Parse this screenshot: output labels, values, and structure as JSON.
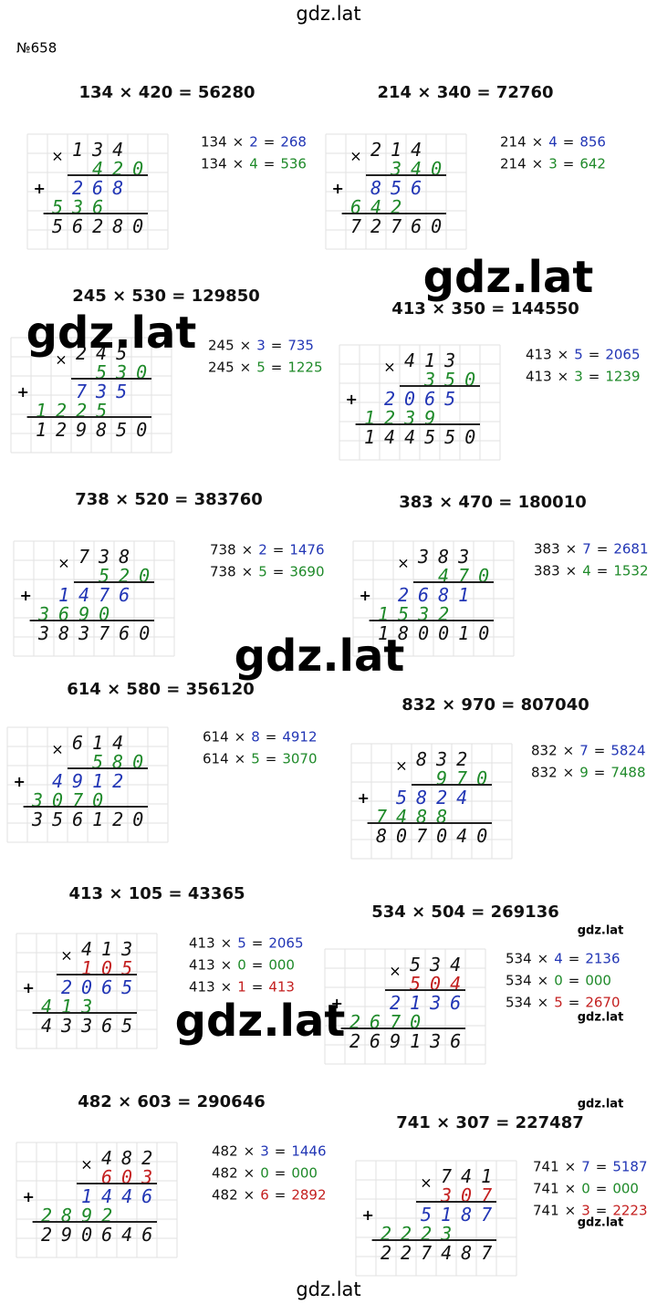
{
  "header": {
    "site": "gdz.lat",
    "number": "№658"
  },
  "footer": "gdz.lat",
  "signs": {
    "times": "×",
    "plus": "+",
    "equals": "="
  },
  "problems": [
    {
      "title": "134 × 420 = 56280",
      "a": "134",
      "b": "420",
      "partials": [
        {
          "digits": "268",
          "color": "#2236b5"
        },
        {
          "digits": "536",
          "color": "#1f8a2a"
        }
      ],
      "result": "56280",
      "notes": [
        {
          "a": "134",
          "b": "2",
          "r": "268",
          "color": "#2236b5"
        },
        {
          "a": "134",
          "b": "4",
          "r": "536",
          "color": "#1f8a2a"
        }
      ]
    },
    {
      "title": "214 × 340 = 72760",
      "a": "214",
      "b": "340",
      "partials": [
        {
          "digits": "856",
          "color": "#2236b5"
        },
        {
          "digits": "642",
          "color": "#1f8a2a"
        }
      ],
      "result": "72760",
      "notes": [
        {
          "a": "214",
          "b": "4",
          "r": "856",
          "color": "#2236b5"
        },
        {
          "a": "214",
          "b": "3",
          "r": "642",
          "color": "#1f8a2a"
        }
      ]
    },
    {
      "title": "245 × 530 = 129850",
      "a": "245",
      "b": "530",
      "partials": [
        {
          "digits": "735",
          "color": "#2236b5"
        },
        {
          "digits": "1225",
          "color": "#1f8a2a"
        }
      ],
      "result": "129850",
      "notes": [
        {
          "a": "245",
          "b": "3",
          "r": "735",
          "color": "#2236b5"
        },
        {
          "a": "245",
          "b": "5",
          "r": "1225",
          "color": "#1f8a2a"
        }
      ]
    },
    {
      "title": "413 × 350 = 144550",
      "a": "413",
      "b": "350",
      "partials": [
        {
          "digits": "2065",
          "color": "#2236b5"
        },
        {
          "digits": "1239",
          "color": "#1f8a2a"
        }
      ],
      "result": "144550",
      "notes": [
        {
          "a": "413",
          "b": "5",
          "r": "2065",
          "color": "#2236b5"
        },
        {
          "a": "413",
          "b": "3",
          "r": "1239",
          "color": "#1f8a2a"
        }
      ]
    },
    {
      "title": "738 × 520 = 383760",
      "a": "738",
      "b": "520",
      "partials": [
        {
          "digits": "1476",
          "color": "#2236b5"
        },
        {
          "digits": "3690",
          "color": "#1f8a2a"
        }
      ],
      "result": "383760",
      "notes": [
        {
          "a": "738",
          "b": "2",
          "r": "1476",
          "color": "#2236b5"
        },
        {
          "a": "738",
          "b": "5",
          "r": "3690",
          "color": "#1f8a2a"
        }
      ]
    },
    {
      "title": "383 × 470 = 180010",
      "a": "383",
      "b": "470",
      "partials": [
        {
          "digits": "2681",
          "color": "#2236b5"
        },
        {
          "digits": "1532",
          "color": "#1f8a2a"
        }
      ],
      "result": "180010",
      "notes": [
        {
          "a": "383",
          "b": "7",
          "r": "2681",
          "color": "#2236b5"
        },
        {
          "a": "383",
          "b": "4",
          "r": "1532",
          "color": "#1f8a2a"
        }
      ]
    },
    {
      "title": "614 × 580 = 356120",
      "a": "614",
      "b": "580",
      "partials": [
        {
          "digits": "4912",
          "color": "#2236b5"
        },
        {
          "digits": "3070",
          "color": "#1f8a2a"
        }
      ],
      "result": "356120",
      "notes": [
        {
          "a": "614",
          "b": "8",
          "r": "4912",
          "color": "#2236b5"
        },
        {
          "a": "614",
          "b": "5",
          "r": "3070",
          "color": "#1f8a2a"
        }
      ]
    },
    {
      "title": "832 × 970 = 807040",
      "a": "832",
      "b": "970",
      "partials": [
        {
          "digits": "5824",
          "color": "#2236b5"
        },
        {
          "digits": "7488",
          "color": "#1f8a2a"
        }
      ],
      "result": "807040",
      "notes": [
        {
          "a": "832",
          "b": "7",
          "r": "5824",
          "color": "#2236b5"
        },
        {
          "a": "832",
          "b": "9",
          "r": "7488",
          "color": "#1f8a2a"
        }
      ]
    },
    {
      "title": "413 × 105 = 43365",
      "a": "413",
      "b": "105",
      "partials": [
        {
          "digits": "2065",
          "color": "#2236b5"
        },
        {
          "digits": "413",
          "color": "#1f8a2a"
        }
      ],
      "result": "43365",
      "notes": [
        {
          "a": "413",
          "b": "5",
          "r": "2065",
          "color": "#2236b5"
        },
        {
          "a": "413",
          "b": "0",
          "r": "000",
          "color": "#1f8a2a"
        },
        {
          "a": "413",
          "b": "1",
          "r": "413",
          "color": "#c42020"
        }
      ]
    },
    {
      "title": "534 × 504 = 269136",
      "a": "534",
      "b": "504",
      "partials": [
        {
          "digits": "2136",
          "color": "#2236b5"
        },
        {
          "digits": "2670",
          "color": "#1f8a2a"
        }
      ],
      "result": "269136",
      "notes": [
        {
          "a": "534",
          "b": "4",
          "r": "2136",
          "color": "#2236b5"
        },
        {
          "a": "534",
          "b": "0",
          "r": "000",
          "color": "#1f8a2a"
        },
        {
          "a": "534",
          "b": "5",
          "r": "2670",
          "color": "#c42020"
        }
      ]
    },
    {
      "title": "482 × 603 = 290646",
      "a": "482",
      "b": "603",
      "partials": [
        {
          "digits": "1446",
          "color": "#2236b5"
        },
        {
          "digits": "2892",
          "color": "#1f8a2a"
        }
      ],
      "result": "290646",
      "notes": [
        {
          "a": "482",
          "b": "3",
          "r": "1446",
          "color": "#2236b5"
        },
        {
          "a": "482",
          "b": "0",
          "r": "000",
          "color": "#1f8a2a"
        },
        {
          "a": "482",
          "b": "6",
          "r": "2892",
          "color": "#c42020"
        }
      ]
    },
    {
      "title": "741 × 307 = 227487",
      "a": "741",
      "b": "307",
      "partials": [
        {
          "digits": "5187",
          "color": "#2236b5"
        },
        {
          "digits": "2223",
          "color": "#1f8a2a"
        }
      ],
      "result": "227487",
      "notes": [
        {
          "a": "741",
          "b": "7",
          "r": "5187",
          "color": "#2236b5"
        },
        {
          "a": "741",
          "b": "0",
          "r": "000",
          "color": "#1f8a2a"
        },
        {
          "a": "741",
          "b": "3",
          "r": "2223",
          "color": "#c42020"
        }
      ]
    }
  ],
  "watermarks": [
    "gdz.lat",
    "gdz.lat",
    "gdz.lat",
    "gdz.lat",
    "gdz.lat",
    "gdz.lat",
    "gdz.lat",
    "gdz.lat"
  ]
}
